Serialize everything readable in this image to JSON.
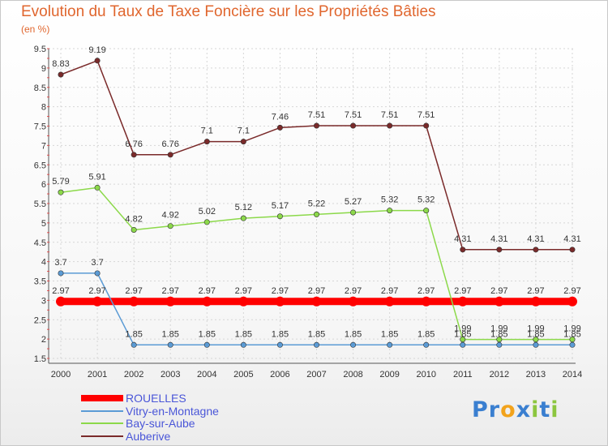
{
  "chart_data": {
    "type": "line",
    "title": "Evolution du Taux de Taxe Foncière sur les Propriétés Bâties",
    "ylabel": "(en %)",
    "xlabel": "",
    "x": [
      "2000",
      "2001",
      "2002",
      "2003",
      "2004",
      "2005",
      "2006",
      "2007",
      "2008",
      "2009",
      "2010",
      "2011",
      "2012",
      "2013",
      "2014"
    ],
    "ylim": [
      1.5,
      9.5
    ],
    "yticks": [
      "1.5",
      "2",
      "2.5",
      "3",
      "3.5",
      "4",
      "4.5",
      "5",
      "5.5",
      "6",
      "6.5",
      "7",
      "7.5",
      "8",
      "8.5",
      "9",
      "9.5"
    ],
    "grid": true,
    "series": [
      {
        "name": "ROUELLES",
        "color": "#ff0000",
        "line_width": 9,
        "values": [
          2.97,
          2.97,
          2.97,
          2.97,
          2.97,
          2.97,
          2.97,
          2.97,
          2.97,
          2.97,
          2.97,
          2.97,
          2.97,
          2.97,
          2.97
        ],
        "labels": [
          "2.97",
          "2.97",
          "2.97",
          "2.97",
          "2.97",
          "2.97",
          "2.97",
          "2.97",
          "2.97",
          "2.97",
          "2.97",
          "2.97",
          "2.97",
          "2.97",
          "2.97"
        ]
      },
      {
        "name": "Vitry-en-Montagne",
        "color": "#5b9bd5",
        "line_width": 1.5,
        "values": [
          3.7,
          3.7,
          1.85,
          1.85,
          1.85,
          1.85,
          1.85,
          1.85,
          1.85,
          1.85,
          1.85,
          1.85,
          1.85,
          1.85,
          1.85
        ],
        "labels": [
          "3.7",
          "3.7",
          "1.85",
          "1.85",
          "1.85",
          "1.85",
          "1.85",
          "1.85",
          "1.85",
          "1.85",
          "1.85",
          "1.85",
          "1.85",
          "1.85",
          "1.85"
        ]
      },
      {
        "name": "Bay-sur-Aube",
        "color": "#8cd94a",
        "line_width": 1.5,
        "values": [
          5.79,
          5.91,
          4.82,
          4.92,
          5.02,
          5.12,
          5.17,
          5.22,
          5.27,
          5.32,
          5.32,
          1.99,
          1.99,
          1.99,
          1.99
        ],
        "labels": [
          "5.79",
          "5.91",
          "4.82",
          "4.92",
          "5.02",
          "5.12",
          "5.17",
          "5.22",
          "5.27",
          "5.32",
          "5.32",
          "1.99",
          "1.99",
          "1.99",
          "1.99"
        ]
      },
      {
        "name": "Auberive",
        "color": "#7a2a2a",
        "line_width": 1.5,
        "values": [
          8.83,
          9.19,
          6.76,
          6.76,
          7.1,
          7.1,
          7.46,
          7.51,
          7.51,
          7.51,
          7.51,
          4.31,
          4.31,
          4.31,
          4.31
        ],
        "labels": [
          "8.83",
          "9.19",
          "6.76",
          "6.76",
          "7.1",
          "7.1",
          "7.46",
          "7.51",
          "7.51",
          "7.51",
          "7.51",
          "4.31",
          "4.31",
          "4.31",
          "4.31"
        ]
      }
    ]
  },
  "logo": {
    "letters": [
      "P",
      "r",
      "o",
      "x",
      "i",
      "t",
      "i"
    ],
    "colors": [
      "#3a7fd0",
      "#3a7fd0",
      "#f2a31c",
      "#3a7fd0",
      "#8cc63f",
      "#3a7fd0",
      "#8cc63f"
    ]
  }
}
